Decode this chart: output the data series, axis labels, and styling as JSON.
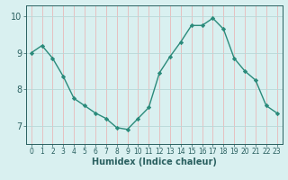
{
  "x": [
    0,
    1,
    2,
    3,
    4,
    5,
    6,
    7,
    8,
    9,
    10,
    11,
    12,
    13,
    14,
    15,
    16,
    17,
    18,
    19,
    20,
    21,
    22,
    23
  ],
  "y": [
    9.0,
    9.2,
    8.85,
    8.35,
    7.75,
    7.55,
    7.35,
    7.2,
    6.95,
    6.9,
    7.2,
    7.5,
    8.45,
    8.9,
    9.3,
    9.75,
    9.75,
    9.95,
    9.65,
    8.85,
    8.5,
    8.25,
    7.55,
    7.35
  ],
  "line_color": "#2a8a7a",
  "marker": "D",
  "marker_size": 2.2,
  "bg_color": "#d9f0f0",
  "grid_color": "#b8d8d8",
  "grid_red_color": "#e8b8b8",
  "axis_color": "#2a6060",
  "xlabel": "Humidex (Indice chaleur)",
  "xlabel_fontsize": 7,
  "ylim": [
    6.5,
    10.3
  ],
  "yticks": [
    7,
    8,
    9,
    10
  ],
  "xticks": [
    0,
    1,
    2,
    3,
    4,
    5,
    6,
    7,
    8,
    9,
    10,
    11,
    12,
    13,
    14,
    15,
    16,
    17,
    18,
    19,
    20,
    21,
    22,
    23
  ],
  "tick_fontsize": 5.5,
  "line_width": 1.0
}
